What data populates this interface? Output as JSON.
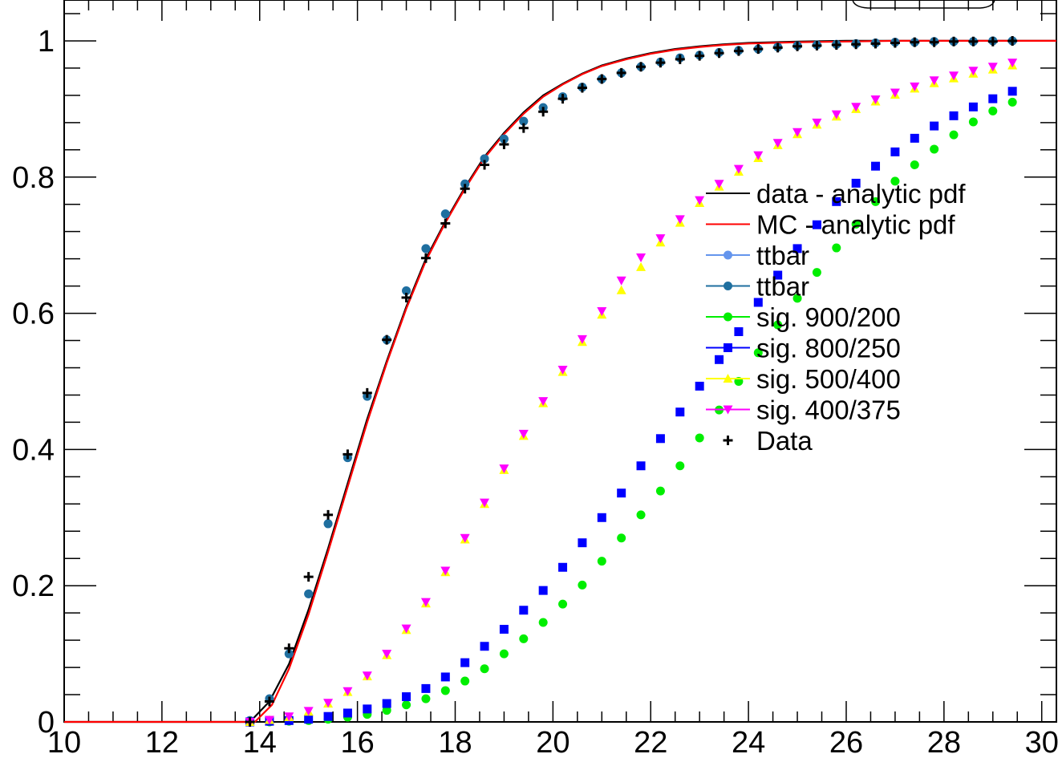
{
  "chart_data": {
    "type": "scatter",
    "title": "",
    "xlabel": "",
    "ylabel": "",
    "xlim": [
      10,
      30.3
    ],
    "ylim": [
      0,
      1.06
    ],
    "xticks": [
      "10",
      "12",
      "14",
      "16",
      "18",
      "20",
      "22",
      "24",
      "26",
      "28",
      "30"
    ],
    "yticks": [
      "0",
      "0.2",
      "0.4",
      "0.6",
      "0.8",
      "1"
    ],
    "grid": false,
    "legend_position": "right",
    "colors": {
      "data_pdf": "#000000",
      "mc_pdf": "#ff0000",
      "ttbar_light": "#6495ed",
      "ttbar_dark": "#1f6f9f",
      "sig_900_200": "#00ee00",
      "sig_800_250": "#0000ff",
      "sig_500_400": "#ffff00",
      "sig_400_375": "#ff00ff",
      "data": "#000000"
    },
    "curves": [
      {
        "name": "data - analytic pdf",
        "color": "#000000",
        "x": [
          10,
          13.8,
          14.2,
          14.6,
          15,
          15.4,
          15.8,
          16.2,
          16.6,
          17,
          17.4,
          17.8,
          18.2,
          18.6,
          19,
          19.4,
          19.8,
          20.2,
          20.6,
          21,
          21.5,
          22,
          22.5,
          23,
          23.5,
          24,
          25,
          26,
          27,
          28,
          29,
          30.3
        ],
        "y": [
          0,
          0,
          0.03,
          0.085,
          0.165,
          0.255,
          0.35,
          0.445,
          0.53,
          0.61,
          0.68,
          0.735,
          0.785,
          0.83,
          0.865,
          0.895,
          0.92,
          0.937,
          0.952,
          0.964,
          0.974,
          0.982,
          0.988,
          0.992,
          0.995,
          0.997,
          0.999,
          1,
          1,
          1,
          1,
          1
        ]
      },
      {
        "name": "MC - analytic pdf",
        "color": "#ff0000",
        "x": [
          10,
          13.9,
          14.25,
          14.6,
          15,
          15.4,
          15.8,
          16.2,
          16.6,
          17,
          17.4,
          17.8,
          18.2,
          18.6,
          19,
          19.4,
          19.8,
          20.2,
          20.6,
          21,
          21.5,
          22,
          22.5,
          23,
          23.5,
          24,
          25,
          26,
          27,
          28,
          29,
          30.3
        ],
        "y": [
          0,
          0,
          0.025,
          0.078,
          0.158,
          0.25,
          0.345,
          0.44,
          0.527,
          0.607,
          0.677,
          0.733,
          0.783,
          0.828,
          0.863,
          0.893,
          0.918,
          0.936,
          0.951,
          0.963,
          0.973,
          0.981,
          0.987,
          0.991,
          0.994,
          0.996,
          0.998,
          0.999,
          1,
          1,
          1,
          1
        ]
      }
    ],
    "x": [
      13.8,
      14.2,
      14.6,
      15.0,
      15.4,
      15.8,
      16.2,
      16.6,
      17.0,
      17.4,
      17.8,
      18.2,
      18.6,
      19.0,
      19.4,
      19.8,
      20.2,
      20.6,
      21.0,
      21.4,
      21.8,
      22.2,
      22.6,
      23.0,
      23.4,
      23.8,
      24.2,
      24.6,
      25.0,
      25.4,
      25.8,
      26.2,
      26.6,
      27.0,
      27.4,
      27.8,
      28.2,
      28.6,
      29.0,
      29.4
    ],
    "series": [
      {
        "name": "ttbar",
        "marker": "circle",
        "color": "#6495ed",
        "values": [
          0.002,
          0.034,
          0.1,
          0.188,
          0.291,
          0.388,
          0.478,
          0.561,
          0.633,
          0.695,
          0.746,
          0.79,
          0.827,
          0.856,
          0.882,
          0.902,
          0.918,
          0.932,
          0.944,
          0.953,
          0.962,
          0.969,
          0.975,
          0.979,
          0.983,
          0.986,
          0.988,
          0.991,
          0.993,
          0.994,
          0.995,
          0.996,
          0.997,
          0.998,
          0.998,
          0.999,
          0.999,
          0.999,
          1,
          1
        ]
      },
      {
        "name": "ttbar",
        "marker": "circle",
        "color": "#1f6f9f",
        "values": [
          0.002,
          0.034,
          0.1,
          0.188,
          0.291,
          0.388,
          0.478,
          0.561,
          0.633,
          0.695,
          0.746,
          0.79,
          0.827,
          0.856,
          0.882,
          0.902,
          0.918,
          0.932,
          0.944,
          0.953,
          0.962,
          0.969,
          0.975,
          0.979,
          0.983,
          0.986,
          0.988,
          0.991,
          0.993,
          0.994,
          0.995,
          0.996,
          0.997,
          0.998,
          0.998,
          0.999,
          0.999,
          0.999,
          1,
          1
        ]
      },
      {
        "name": "sig. 900/200",
        "marker": "circle",
        "color": "#00ee00",
        "values": [
          0,
          0,
          0.001,
          0.002,
          0.004,
          0.007,
          0.011,
          0.017,
          0.025,
          0.034,
          0.046,
          0.06,
          0.078,
          0.1,
          0.122,
          0.146,
          0.173,
          0.201,
          0.236,
          0.27,
          0.304,
          0.339,
          0.376,
          0.417,
          0.458,
          0.5,
          0.542,
          0.583,
          0.622,
          0.66,
          0.696,
          0.731,
          0.764,
          0.794,
          0.818,
          0.841,
          0.862,
          0.881,
          0.897,
          0.91
        ]
      },
      {
        "name": "sig. 800/250",
        "marker": "square",
        "color": "#0000ff",
        "values": [
          0,
          0.001,
          0.002,
          0.004,
          0.008,
          0.013,
          0.019,
          0.027,
          0.037,
          0.049,
          0.066,
          0.087,
          0.111,
          0.136,
          0.164,
          0.193,
          0.227,
          0.263,
          0.3,
          0.336,
          0.376,
          0.416,
          0.455,
          0.493,
          0.532,
          0.573,
          0.616,
          0.656,
          0.695,
          0.73,
          0.764,
          0.791,
          0.816,
          0.837,
          0.857,
          0.875,
          0.89,
          0.903,
          0.915,
          0.926
        ]
      },
      {
        "name": "sig. 500/400",
        "marker": "triangle-up",
        "color": "#ffff00",
        "values": [
          0,
          0.003,
          0.007,
          0.015,
          0.027,
          0.044,
          0.067,
          0.098,
          0.135,
          0.174,
          0.22,
          0.268,
          0.32,
          0.37,
          0.42,
          0.468,
          0.514,
          0.558,
          0.598,
          0.634,
          0.668,
          0.704,
          0.733,
          0.762,
          0.786,
          0.808,
          0.828,
          0.847,
          0.863,
          0.877,
          0.889,
          0.9,
          0.911,
          0.921,
          0.93,
          0.938,
          0.945,
          0.952,
          0.958,
          0.964
        ]
      },
      {
        "name": "sig. 400/375",
        "marker": "triangle-down",
        "color": "#ff00ff",
        "values": [
          0,
          0.003,
          0.008,
          0.016,
          0.028,
          0.045,
          0.068,
          0.1,
          0.137,
          0.176,
          0.222,
          0.27,
          0.322,
          0.372,
          0.423,
          0.471,
          0.517,
          0.562,
          0.603,
          0.648,
          0.682,
          0.71,
          0.738,
          0.766,
          0.79,
          0.812,
          0.832,
          0.85,
          0.866,
          0.88,
          0.892,
          0.903,
          0.914,
          0.924,
          0.933,
          0.942,
          0.949,
          0.956,
          0.962,
          0.968
        ]
      },
      {
        "name": "Data",
        "marker": "cross",
        "color": "#000000",
        "values": [
          0,
          0.03,
          0.108,
          0.213,
          0.304,
          0.393,
          0.483,
          0.561,
          0.623,
          0.681,
          0.732,
          0.783,
          0.818,
          0.848,
          0.872,
          0.896,
          0.915,
          0.931,
          0.944,
          0.953,
          0.962,
          0.968,
          0.973,
          0.978,
          0.982,
          0.985,
          0.988,
          0.99,
          0.992,
          0.993,
          0.994,
          0.995,
          0.996,
          0.997,
          0.998,
          0.998,
          0.999,
          0.999,
          0.999,
          1
        ]
      }
    ],
    "legend": [
      {
        "label": "data - analytic pdf",
        "kind": "line",
        "color": "#000000"
      },
      {
        "label": "MC - analytic pdf",
        "kind": "line",
        "color": "#ff0000"
      },
      {
        "label": "ttbar",
        "kind": "line-marker",
        "marker": "circle",
        "color": "#6495ed"
      },
      {
        "label": "ttbar",
        "kind": "line-marker",
        "marker": "circle",
        "color": "#1f6f9f"
      },
      {
        "label": "sig. 900/200",
        "kind": "line-marker",
        "marker": "circle",
        "color": "#00ee00"
      },
      {
        "label": "sig. 800/250",
        "kind": "line-marker",
        "marker": "square",
        "color": "#0000ff"
      },
      {
        "label": "sig. 500/400",
        "kind": "line-marker",
        "marker": "triangle-up",
        "color": "#ffff00"
      },
      {
        "label": "sig. 400/375",
        "kind": "line-marker",
        "marker": "triangle-down",
        "color": "#ff00ff"
      },
      {
        "label": "Data",
        "kind": "marker",
        "marker": "cross",
        "color": "#000000"
      }
    ]
  }
}
